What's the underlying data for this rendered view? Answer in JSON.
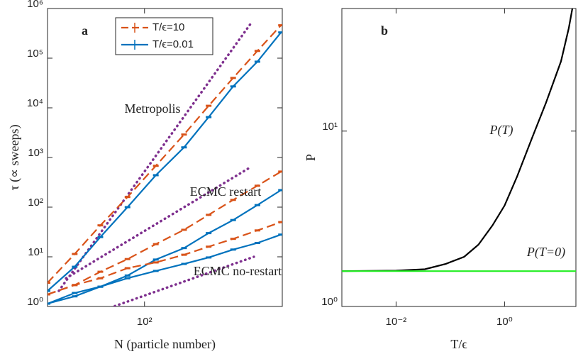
{
  "chart_data": [
    {
      "type": "line",
      "label": "a",
      "xlabel": "N (particle number)",
      "ylabel": "τ (∝ sweeps)",
      "log_x": true,
      "log_y": true,
      "xlim": [
        28,
        610
      ],
      "ylim": [
        1,
        1000000
      ],
      "xticks": [
        {
          "value": 100,
          "label": "10²"
        }
      ],
      "yticks": [
        {
          "value": 1,
          "label": "10⁰"
        },
        {
          "value": 10,
          "label": "10¹"
        },
        {
          "value": 100,
          "label": "10²"
        },
        {
          "value": 1000,
          "label": "10³"
        },
        {
          "value": 10000,
          "label": "10⁴"
        },
        {
          "value": 100000,
          "label": "10⁵"
        },
        {
          "value": 1000000,
          "label": "10⁶"
        }
      ],
      "x": [
        28,
        40,
        56,
        80,
        116,
        168,
        232,
        320,
        440,
        600
      ],
      "series": [
        {
          "name": "T/ϵ=10",
          "color": "#d95319",
          "style": "dashed",
          "values": [
            3,
            11.4,
            43,
            160,
            680,
            2900,
            11000,
            40000,
            140000,
            460000
          ]
        },
        {
          "name": "T/ϵ=0.01",
          "color": "#0072bd",
          "style": "solid",
          "values": [
            2.06,
            6.3,
            25,
            100,
            440,
            1600,
            6500,
            27000,
            85000,
            330000
          ]
        },
        {
          "color": "#d95319",
          "style": "dashed",
          "values": [
            1.75,
            2.7,
            5,
            9,
            18,
            35,
            70,
            140,
            270,
            520
          ]
        },
        {
          "color": "#0072bd",
          "style": "solid",
          "values": [
            1.14,
            1.87,
            2.5,
            4.2,
            8.8,
            15,
            30,
            55,
            110,
            220
          ]
        },
        {
          "color": "#d95319",
          "style": "dashed",
          "values": [
            1.75,
            2.7,
            3.7,
            5.9,
            7.7,
            11,
            16,
            23,
            34,
            50
          ]
        },
        {
          "color": "#0072bd",
          "style": "solid",
          "values": [
            1.14,
            1.6,
            2.5,
            3.7,
            5.2,
            7.2,
            9.7,
            14,
            19,
            28
          ]
        }
      ],
      "guides": [
        {
          "color": "#7e2f8e",
          "x": [
            32.5,
            407
          ],
          "values": [
            2.06,
            520000
          ]
        },
        {
          "color": "#7e2f8e",
          "x": [
            35.7,
            407
          ],
          "values": [
            3.7,
            655
          ]
        },
        {
          "color": "#7e2f8e",
          "x": [
            57,
            420
          ],
          "values": [
            0.82,
            10
          ]
        }
      ],
      "annotations": [
        "Metropolis",
        "ECMC restart",
        "ECMC no-restart"
      ]
    },
    {
      "type": "line",
      "label": "b",
      "xlabel": "T/ϵ",
      "ylabel": "P",
      "log_x": true,
      "log_y": true,
      "xlim": [
        0.001,
        20.7
      ],
      "ylim": [
        1,
        50
      ],
      "xticks": [
        {
          "value": 0.01,
          "label": "10⁻²"
        },
        {
          "value": 1,
          "label": "10⁰"
        }
      ],
      "yticks": [
        {
          "value": 1,
          "label": "10⁰"
        },
        {
          "value": 10,
          "label": "10¹"
        }
      ],
      "series": [
        {
          "color": "#000000",
          "style": "solid",
          "x": [
            0.001,
            0.01,
            0.034,
            0.083,
            0.18,
            0.33,
            0.6,
            1,
            1.7,
            3.2,
            5.8,
            11,
            15.3,
            17.8
          ],
          "values": [
            1.59,
            1.6,
            1.63,
            1.75,
            1.92,
            2.25,
            2.9,
            3.76,
            5.5,
            9.1,
            14.5,
            25,
            38.7,
            50
          ]
        },
        {
          "color": "#22ee22",
          "style": "solid",
          "x": [
            0.001,
            20.7
          ],
          "values": [
            1.59,
            1.59
          ]
        }
      ],
      "annotations": [
        "P(T)",
        "P(T=0)"
      ]
    }
  ]
}
